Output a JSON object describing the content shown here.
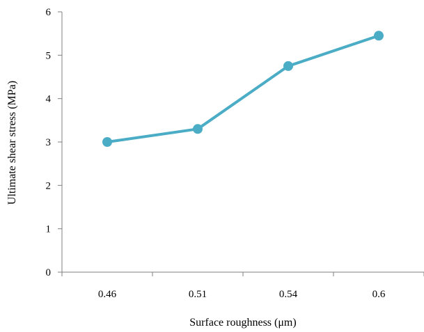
{
  "chart_data": {
    "type": "line",
    "title": "",
    "xlabel": "Surface roughness (μm)",
    "ylabel": "Ultimate shear stress (MPa)",
    "categories": [
      "0.46",
      "0.51",
      "0.54",
      "0.6"
    ],
    "series": [
      {
        "values": [
          3.0,
          3.3,
          4.75,
          5.45
        ],
        "color": "#4BACC6"
      }
    ],
    "ylim": [
      0,
      6
    ],
    "yticks": [
      "0",
      "1",
      "2",
      "3",
      "4",
      "5",
      "6"
    ],
    "grid": false,
    "legend": "none",
    "marker": "circle"
  }
}
